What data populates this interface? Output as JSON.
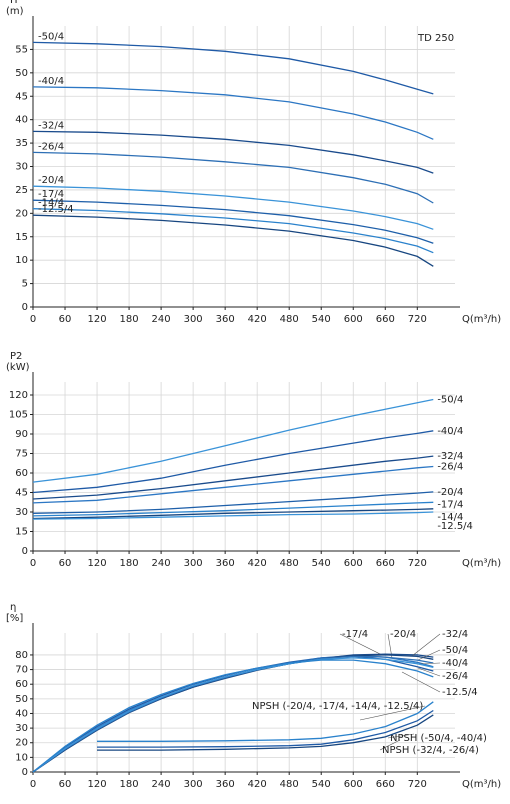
{
  "chart_data": [
    {
      "type": "line",
      "y_label": "H",
      "y_unit": "(m)",
      "x_label": "Q(m³/h)",
      "annotation": "TD 250",
      "x": [
        0,
        120,
        240,
        360,
        480,
        600,
        660,
        720,
        750
      ],
      "xlim": [
        0,
        800
      ],
      "xticks": [
        0,
        60,
        120,
        180,
        240,
        300,
        360,
        420,
        480,
        540,
        600,
        660,
        720
      ],
      "ylim": [
        0,
        60
      ],
      "yticks": [
        0,
        5,
        10,
        15,
        20,
        25,
        30,
        35,
        40,
        45,
        50,
        55
      ],
      "grid": true,
      "series": [
        {
          "name": "-50/4",
          "color": "#1f5aa6",
          "values": [
            56.5,
            56.2,
            55.6,
            54.6,
            53,
            50.3,
            48.5,
            46.5,
            45.5
          ]
        },
        {
          "name": "-40/4",
          "color": "#2c77c4",
          "values": [
            47,
            46.8,
            46.2,
            45.3,
            43.8,
            41.2,
            39.5,
            37.3,
            35.8
          ]
        },
        {
          "name": "-32/4",
          "color": "#1a4b8c",
          "values": [
            37.5,
            37.3,
            36.7,
            35.8,
            34.5,
            32.5,
            31.2,
            29.8,
            28.6
          ]
        },
        {
          "name": "-26/4",
          "color": "#2d6fb5",
          "values": [
            33,
            32.7,
            32,
            31,
            29.8,
            27.6,
            26.2,
            24.2,
            22.2
          ]
        },
        {
          "name": "-20/4",
          "color": "#3a93d8",
          "values": [
            25.8,
            25.4,
            24.7,
            23.7,
            22.4,
            20.5,
            19.3,
            17.8,
            16.6
          ]
        },
        {
          "name": "-17/4",
          "color": "#1e5fa9",
          "values": [
            22.8,
            22.4,
            21.7,
            20.8,
            19.5,
            17.6,
            16.4,
            14.8,
            13.6
          ]
        },
        {
          "name": "-14/4",
          "color": "#2a82cc",
          "values": [
            21,
            20.6,
            19.9,
            19,
            17.8,
            15.8,
            14.6,
            13,
            11.6
          ]
        },
        {
          "name": "-12.5/4",
          "color": "#174680",
          "values": [
            19.6,
            19.2,
            18.5,
            17.5,
            16.2,
            14.2,
            12.8,
            10.8,
            8.7
          ]
        }
      ]
    },
    {
      "type": "line",
      "y_label": "P2",
      "y_unit": "(kW)",
      "x_label": "Q(m³/h)",
      "x": [
        0,
        120,
        240,
        360,
        480,
        600,
        660,
        720,
        750
      ],
      "xlim": [
        0,
        800
      ],
      "xticks": [
        0,
        60,
        120,
        180,
        240,
        300,
        360,
        420,
        480,
        540,
        600,
        660,
        720
      ],
      "ylim": [
        0,
        130
      ],
      "yticks": [
        0,
        15,
        30,
        45,
        60,
        75,
        90,
        105,
        120
      ],
      "grid": true,
      "series": [
        {
          "name": "-50/4",
          "color": "#3a93d8",
          "values": [
            53,
            59,
            69,
            81,
            93,
            104,
            109,
            114,
            116.5
          ]
        },
        {
          "name": "-40/4",
          "color": "#1f5aa6",
          "values": [
            45,
            49,
            56,
            66,
            75,
            83,
            87,
            90.5,
            92.5
          ]
        },
        {
          "name": "-32/4",
          "color": "#1a4b8c",
          "values": [
            40,
            43,
            48,
            54,
            60,
            66,
            69,
            71.5,
            73
          ]
        },
        {
          "name": "-26/4",
          "color": "#2c77c4",
          "values": [
            37,
            39,
            44,
            49,
            54,
            59,
            61.5,
            64,
            65
          ]
        },
        {
          "name": "-20/4",
          "color": "#1e5fa9",
          "values": [
            29,
            30,
            32,
            35,
            38,
            41,
            43,
            44.5,
            45.5
          ]
        },
        {
          "name": "-17/4",
          "color": "#2a82cc",
          "values": [
            27,
            28,
            29.5,
            31,
            33,
            35,
            36,
            37,
            37.5
          ]
        },
        {
          "name": "-14/4",
          "color": "#174680",
          "values": [
            25,
            26,
            27.5,
            29,
            30,
            31,
            31.5,
            32,
            32.5
          ]
        },
        {
          "name": "-12.5/4",
          "color": "#3a93d8",
          "values": [
            24.5,
            25,
            26,
            27,
            28,
            28.5,
            29,
            29.5,
            30
          ]
        }
      ]
    },
    {
      "type": "line",
      "y_label": "η",
      "y_unit": "[%]",
      "x_label": "Q(m³/h)",
      "x": [
        0,
        60,
        120,
        180,
        240,
        300,
        360,
        420,
        480,
        540,
        600,
        660,
        720,
        750
      ],
      "xlim": [
        0,
        800
      ],
      "xticks": [
        0,
        60,
        120,
        180,
        240,
        300,
        360,
        420,
        480,
        540,
        600,
        660,
        720
      ],
      "ylim": [
        0,
        95
      ],
      "yticks": [
        0,
        10,
        20,
        30,
        40,
        50,
        60,
        70,
        80
      ],
      "grid": true,
      "series": [
        {
          "name": "-17/4",
          "color": "#1f5aa6",
          "values": [
            0,
            17,
            31,
            43,
            52,
            60,
            66,
            71,
            75,
            78,
            79,
            77,
            72,
            69
          ]
        },
        {
          "name": "-20/4",
          "color": "#2c77c4",
          "values": [
            0,
            16,
            30,
            42,
            51,
            59,
            65,
            70,
            74.5,
            78,
            79.5,
            78.5,
            75,
            72
          ]
        },
        {
          "name": "-32/4",
          "color": "#1a4b8c",
          "values": [
            0,
            15,
            29,
            41,
            50,
            58,
            64.5,
            70,
            74,
            77.5,
            80,
            80.5,
            80,
            78.5
          ]
        },
        {
          "name": "-50/4",
          "color": "#174680",
          "values": [
            0,
            15,
            28.5,
            40.5,
            50,
            58,
            64,
            69.5,
            74,
            77.5,
            79.5,
            80,
            79,
            77
          ]
        },
        {
          "name": "-40/4",
          "color": "#2d6fb5",
          "values": [
            0,
            15.5,
            29,
            41,
            50.5,
            58.5,
            64.5,
            70,
            74,
            77.5,
            79,
            78.5,
            76.5,
            74.5
          ]
        },
        {
          "name": "-26/4",
          "color": "#3a93d8",
          "values": [
            0,
            16,
            29.5,
            41.5,
            51,
            59,
            65,
            70,
            74,
            77,
            78,
            77,
            74,
            71.5
          ]
        },
        {
          "name": "-12.5/4",
          "color": "#2a82cc",
          "values": [
            0,
            17.5,
            32,
            44,
            53,
            60.5,
            66.5,
            71,
            74.5,
            76.5,
            76.5,
            74,
            69,
            65
          ]
        },
        {
          "name": "NPSH (-20/4, -17/4, -14/4, -12.5/4)",
          "color": "#2a82cc",
          "x": [
            120,
            240,
            360,
            480,
            540,
            600,
            660,
            720,
            750
          ],
          "values": [
            21,
            21,
            21.3,
            22,
            23,
            26,
            31,
            40,
            48
          ]
        },
        {
          "name": "NPSH (-50/4, -40/4)",
          "color": "#1f5aa6",
          "x": [
            120,
            240,
            360,
            480,
            540,
            600,
            660,
            720,
            750
          ],
          "values": [
            17,
            17,
            17.3,
            18,
            19,
            22,
            27,
            35,
            42
          ]
        },
        {
          "name": "NPSH (-32/4, -26/4)",
          "color": "#174680",
          "x": [
            120,
            240,
            360,
            480,
            540,
            600,
            660,
            720,
            750
          ],
          "values": [
            15,
            15,
            15.5,
            16.5,
            17.5,
            20,
            24,
            32,
            39
          ]
        }
      ]
    }
  ]
}
